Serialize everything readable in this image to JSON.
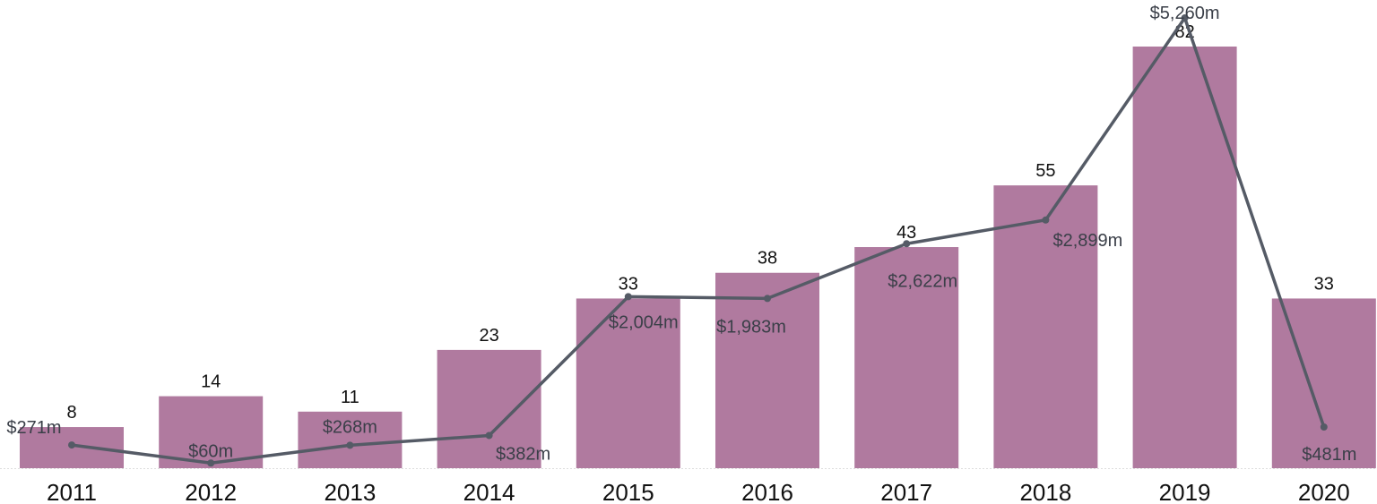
{
  "chart_data": {
    "type": "bar+line",
    "categories": [
      "2011",
      "2012",
      "2013",
      "2014",
      "2015",
      "2016",
      "2017",
      "2018",
      "2019",
      "2020"
    ],
    "series": [
      {
        "type": "bar",
        "values": [
          8,
          14,
          11,
          23,
          33,
          38,
          43,
          55,
          82,
          33
        ],
        "color": "#b07a9f"
      },
      {
        "type": "line",
        "values": [
          271,
          60,
          268,
          382,
          2004,
          1983,
          2622,
          2899,
          5260,
          481
        ],
        "labels": [
          "$271m",
          "$60m",
          "$268m",
          "$382m",
          "$2,004m",
          "$1,983m",
          "$2,622m",
          "$2,899m",
          "$5,260m",
          "$481m"
        ],
        "color": "#555b66"
      }
    ],
    "grid": false,
    "legend": "none"
  }
}
